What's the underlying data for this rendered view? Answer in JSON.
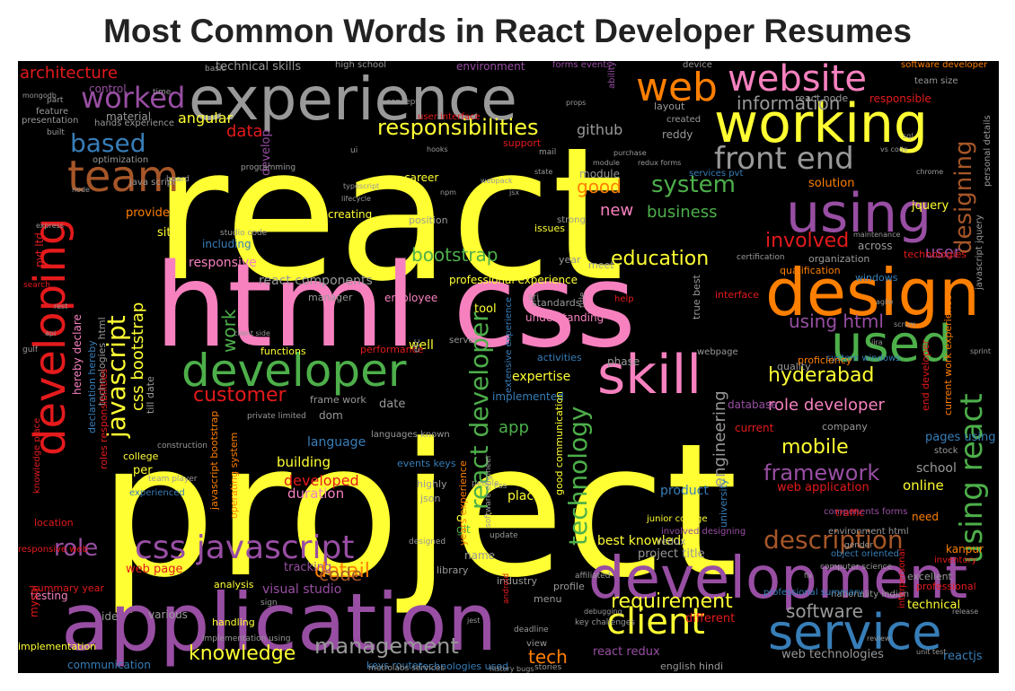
{
  "title": "Most Common Words in React Developer Resumes",
  "palette": {
    "yellow": "#ffff33",
    "pink": "#f781bf",
    "gray": "#999999",
    "purple": "#984ea3",
    "green": "#4daf4a",
    "orange": "#ff7f00",
    "brown": "#a65628",
    "blue": "#377eb8",
    "red": "#e41a1c"
  },
  "words": [
    {
      "text": "project",
      "color": "yellow"
    },
    {
      "text": "react",
      "color": "yellow"
    },
    {
      "text": "html css",
      "color": "pink"
    },
    {
      "text": "application",
      "color": "purple"
    },
    {
      "text": "experience",
      "color": "gray"
    },
    {
      "text": "design",
      "color": "orange"
    },
    {
      "text": "development",
      "color": "purple"
    },
    {
      "text": "working",
      "color": "yellow"
    },
    {
      "text": "developer",
      "color": "green"
    },
    {
      "text": "using",
      "color": "purple"
    },
    {
      "text": "skill",
      "color": "pink"
    },
    {
      "text": "used",
      "color": "green"
    },
    {
      "text": "service",
      "color": "blue"
    },
    {
      "text": "developing",
      "color": "red"
    },
    {
      "text": "web",
      "color": "orange"
    },
    {
      "text": "website",
      "color": "pink"
    },
    {
      "text": "team",
      "color": "brown"
    },
    {
      "text": "css javascript",
      "color": "purple"
    },
    {
      "text": "client",
      "color": "yellow"
    },
    {
      "text": "front end",
      "color": "gray"
    },
    {
      "text": "worked",
      "color": "purple"
    },
    {
      "text": "using react",
      "color": "green"
    },
    {
      "text": "javascript",
      "color": "yellow"
    },
    {
      "text": "react developer",
      "color": "green"
    },
    {
      "text": "technology",
      "color": "green"
    },
    {
      "text": "description",
      "color": "brown"
    },
    {
      "text": "designing",
      "color": "brown"
    },
    {
      "text": "based",
      "color": "blue"
    },
    {
      "text": "responsibilities",
      "color": "yellow"
    },
    {
      "text": "system",
      "color": "green"
    },
    {
      "text": "management",
      "color": "gray"
    },
    {
      "text": "knowledge",
      "color": "yellow"
    },
    {
      "text": "framework",
      "color": "purple"
    },
    {
      "text": "requirement",
      "color": "yellow"
    },
    {
      "text": "customer",
      "color": "red"
    },
    {
      "text": "role",
      "color": "purple"
    },
    {
      "text": "hyderabad",
      "color": "yellow"
    },
    {
      "text": "mobile",
      "color": "yellow"
    },
    {
      "text": "involved",
      "color": "red"
    },
    {
      "text": "bootstrap",
      "color": "green"
    },
    {
      "text": "education",
      "color": "yellow"
    },
    {
      "text": "software",
      "color": "gray"
    },
    {
      "text": "architecture",
      "color": "red"
    },
    {
      "text": "good",
      "color": "orange"
    },
    {
      "text": "business",
      "color": "green"
    },
    {
      "text": "using html",
      "color": "purple"
    },
    {
      "text": "information",
      "color": "gray"
    },
    {
      "text": "detail",
      "color": "orange"
    },
    {
      "text": "work",
      "color": "green"
    },
    {
      "text": "css bootstrap",
      "color": "yellow"
    },
    {
      "text": "engineering",
      "color": "gray"
    },
    {
      "text": "tech",
      "color": "orange"
    },
    {
      "text": "code",
      "color": "brown"
    },
    {
      "text": "app",
      "color": "green"
    },
    {
      "text": "github",
      "color": "gray"
    },
    {
      "text": "new",
      "color": "pink"
    },
    {
      "text": "role developer",
      "color": "pink"
    },
    {
      "text": "user",
      "color": "purple"
    },
    {
      "text": "data",
      "color": "red"
    },
    {
      "text": "angular",
      "color": "yellow"
    },
    {
      "text": "technical skills",
      "color": "gray"
    },
    {
      "text": "environment",
      "color": "purple"
    },
    {
      "text": "react components",
      "color": "gray"
    },
    {
      "text": "responsive",
      "color": "pink"
    },
    {
      "text": "language",
      "color": "blue"
    },
    {
      "text": "developed",
      "color": "red"
    },
    {
      "text": "duration",
      "color": "pink"
    },
    {
      "text": "building",
      "color": "yellow"
    },
    {
      "text": "product",
      "color": "blue"
    },
    {
      "text": "school",
      "color": "gray"
    },
    {
      "text": "online",
      "color": "yellow"
    },
    {
      "text": "web application",
      "color": "red"
    },
    {
      "text": "pages using",
      "color": "blue"
    },
    {
      "text": "best knowledge",
      "color": "yellow"
    },
    {
      "text": "project title",
      "color": "gray"
    },
    {
      "text": "visual studio",
      "color": "purple"
    },
    {
      "text": "web page",
      "color": "red"
    },
    {
      "text": "tracking",
      "color": "purple"
    },
    {
      "text": "web technologies",
      "color": "gray"
    },
    {
      "text": "react redux",
      "color": "purple"
    },
    {
      "text": "reactjs",
      "color": "blue"
    },
    {
      "text": "communication",
      "color": "blue"
    },
    {
      "text": "implementation",
      "color": "yellow"
    },
    {
      "text": "testing",
      "color": "pink"
    },
    {
      "text": "various",
      "color": "gray"
    },
    {
      "text": "keys router",
      "color": "blue"
    },
    {
      "text": "technologies used",
      "color": "blue"
    },
    {
      "text": "different",
      "color": "red"
    },
    {
      "text": "implemented",
      "color": "blue"
    },
    {
      "text": "expertise",
      "color": "yellow"
    },
    {
      "text": "database",
      "color": "purple"
    },
    {
      "text": "current",
      "color": "red"
    },
    {
      "text": "place",
      "color": "yellow"
    },
    {
      "text": "objective",
      "color": "yellow"
    },
    {
      "text": "module",
      "color": "gray"
    },
    {
      "text": "creating",
      "color": "yellow"
    },
    {
      "text": "solution",
      "color": "orange"
    },
    {
      "text": "jquery",
      "color": "yellow"
    },
    {
      "text": "provide",
      "color": "orange"
    },
    {
      "text": "site",
      "color": "yellow"
    },
    {
      "text": "including",
      "color": "blue"
    },
    {
      "text": "develop",
      "color": "purple"
    },
    {
      "text": "pvt ltd",
      "color": "red"
    },
    {
      "text": "control",
      "color": "purple"
    },
    {
      "text": "material",
      "color": "gray"
    },
    {
      "text": "optimization",
      "color": "gray"
    },
    {
      "text": "hands experience",
      "color": "gray"
    },
    {
      "text": "career",
      "color": "yellow"
    },
    {
      "text": "responsible",
      "color": "red"
    },
    {
      "text": "team size",
      "color": "gray"
    },
    {
      "text": "software developer",
      "color": "orange"
    },
    {
      "text": "created",
      "color": "gray"
    },
    {
      "text": "layout",
      "color": "gray"
    },
    {
      "text": "reddy",
      "color": "gray"
    },
    {
      "text": "react node",
      "color": "gray"
    },
    {
      "text": "services pvt",
      "color": "blue"
    },
    {
      "text": "organization",
      "color": "gray"
    },
    {
      "text": "employee",
      "color": "pink"
    },
    {
      "text": "manager",
      "color": "gray"
    },
    {
      "text": "true best",
      "color": "gray"
    },
    {
      "text": "system windows",
      "color": "blue"
    },
    {
      "text": "quality",
      "color": "gray"
    },
    {
      "text": "per",
      "color": "yellow"
    },
    {
      "text": "college",
      "color": "yellow"
    },
    {
      "text": "experienced",
      "color": "blue"
    },
    {
      "text": "location",
      "color": "red"
    },
    {
      "text": "summary year",
      "color": "red"
    },
    {
      "text": "hereby declare",
      "color": "pink"
    },
    {
      "text": "events keys",
      "color": "blue"
    },
    {
      "text": "frame work",
      "color": "gray"
    },
    {
      "text": "dom",
      "color": "gray"
    },
    {
      "text": "date",
      "color": "gray"
    },
    {
      "text": "well",
      "color": "yellow"
    },
    {
      "text": "performance",
      "color": "red"
    },
    {
      "text": "functions",
      "color": "yellow"
    },
    {
      "text": "tool",
      "color": "yellow"
    },
    {
      "text": "git",
      "color": "green"
    },
    {
      "text": "json",
      "color": "gray"
    },
    {
      "text": "name",
      "color": "gray"
    },
    {
      "text": "industry",
      "color": "gray"
    },
    {
      "text": "library",
      "color": "gray"
    },
    {
      "text": "profile",
      "color": "gray"
    },
    {
      "text": "menu",
      "color": "gray"
    },
    {
      "text": "analysis",
      "color": "yellow"
    },
    {
      "text": "ide",
      "color": "gray"
    },
    {
      "text": "mysql",
      "color": "red"
    },
    {
      "text": "handling",
      "color": "yellow"
    },
    {
      "text": "issues",
      "color": "yellow"
    },
    {
      "text": "year",
      "color": "gray"
    },
    {
      "text": "meet",
      "color": "gray"
    },
    {
      "text": "understanding",
      "color": "pink"
    },
    {
      "text": "phase",
      "color": "gray"
    },
    {
      "text": "activities",
      "color": "blue"
    },
    {
      "text": "professional experience",
      "color": "yellow"
    },
    {
      "text": "position",
      "color": "gray"
    },
    {
      "text": "standards",
      "color": "gray"
    },
    {
      "text": "company",
      "color": "gray"
    },
    {
      "text": "technical",
      "color": "yellow"
    },
    {
      "text": "professional",
      "color": "red"
    },
    {
      "text": "excellent",
      "color": "gray"
    },
    {
      "text": "inventory",
      "color": "red"
    },
    {
      "text": "proficiency",
      "color": "orange"
    },
    {
      "text": "qualification",
      "color": "orange"
    },
    {
      "text": "interface",
      "color": "red"
    },
    {
      "text": "technologies",
      "color": "red"
    },
    {
      "text": "windows",
      "color": "blue"
    },
    {
      "text": "across",
      "color": "gray"
    },
    {
      "text": "current work experience",
      "color": "orange"
    },
    {
      "text": "javascript jquery",
      "color": "gray"
    },
    {
      "text": "personal details",
      "color": "gray"
    },
    {
      "text": "components forms",
      "color": "purple"
    },
    {
      "text": "involved designing",
      "color": "purple"
    },
    {
      "text": "nationality indian",
      "color": "gray"
    },
    {
      "text": "interpersonal",
      "color": "red"
    },
    {
      "text": "object oriented",
      "color": "blue"
    },
    {
      "text": "professional summary",
      "color": "blue"
    },
    {
      "text": "kanpur",
      "color": "orange"
    },
    {
      "text": "traffic",
      "color": "red"
    },
    {
      "text": "environment html",
      "color": "gray"
    },
    {
      "text": "need",
      "color": "orange"
    },
    {
      "text": "end developer",
      "color": "red"
    },
    {
      "text": "english hindi",
      "color": "gray"
    },
    {
      "text": "university",
      "color": "blue"
    },
    {
      "text": "good communication",
      "color": "yellow"
    },
    {
      "text": "years experience",
      "color": "orange"
    },
    {
      "text": "highly",
      "color": "gray"
    },
    {
      "text": "redux",
      "color": "gray"
    },
    {
      "text": "technologies html",
      "color": "gray"
    },
    {
      "text": "roles responsibilities",
      "color": "red"
    },
    {
      "text": "declaration hereby",
      "color": "blue"
    },
    {
      "text": "till date",
      "color": "gray"
    },
    {
      "text": "javascript bootstrap",
      "color": "orange"
    },
    {
      "text": "operating system",
      "color": "orange"
    },
    {
      "text": "knowledge place",
      "color": "red"
    },
    {
      "text": "responsive web",
      "color": "red"
    },
    {
      "text": "extensive experience",
      "color": "blue"
    },
    {
      "text": "languages known",
      "color": "gray"
    },
    {
      "text": "user interface",
      "color": "red"
    },
    {
      "text": "java script",
      "color": "gray"
    },
    {
      "text": "metrolabs services",
      "color": "gray"
    },
    {
      "text": "presentation",
      "color": "gray"
    },
    {
      "text": "feature",
      "color": "gray"
    },
    {
      "text": "part",
      "color": "gray"
    },
    {
      "text": "built",
      "color": "gray"
    },
    {
      "text": "high school",
      "color": "gray"
    },
    {
      "text": "forms events",
      "color": "purple"
    },
    {
      "text": "ability",
      "color": "purple"
    },
    {
      "text": "device",
      "color": "gray"
    },
    {
      "text": "support",
      "color": "red"
    },
    {
      "text": "concept",
      "color": "gray"
    },
    {
      "text": "board",
      "color": "gray"
    },
    {
      "text": "programming",
      "color": "gray"
    },
    {
      "text": "deadline",
      "color": "gray"
    },
    {
      "text": "view",
      "color": "gray"
    },
    {
      "text": "software engineer",
      "color": "gray"
    },
    {
      "text": "sri",
      "color": "gray"
    },
    {
      "text": "server",
      "color": "gray"
    },
    {
      "text": "junior college",
      "color": "yellow"
    },
    {
      "text": "webpage",
      "color": "gray"
    },
    {
      "text": "etc",
      "color": "gray"
    },
    {
      "text": "help",
      "color": "red"
    },
    {
      "text": "time",
      "color": "gray"
    },
    {
      "text": "basic",
      "color": "gray"
    },
    {
      "text": "update",
      "color": "gray"
    },
    {
      "text": "designed",
      "color": "gray"
    },
    {
      "text": "people",
      "color": "gray"
    },
    {
      "text": "stories",
      "color": "gray"
    },
    {
      "text": "android",
      "color": "red"
    },
    {
      "text": "affiliated",
      "color": "gray"
    },
    {
      "text": "strong",
      "color": "gray"
    },
    {
      "text": "stock",
      "color": "gray"
    },
    {
      "text": "search",
      "color": "red"
    },
    {
      "text": "title",
      "color": "gray"
    },
    {
      "text": "gender",
      "color": "gray"
    },
    {
      "text": "computer science",
      "color": "gray"
    },
    {
      "text": "key challenges",
      "color": "gray"
    },
    {
      "text": "gulf",
      "color": "gray"
    },
    {
      "text": "sign",
      "color": "gray"
    },
    {
      "text": "certification",
      "color": "gray"
    },
    {
      "text": "ui",
      "color": "gray"
    },
    {
      "text": "mail",
      "color": "gray"
    },
    {
      "text": "css",
      "color": "gray"
    },
    {
      "text": "team player",
      "color": "gray"
    },
    {
      "text": "studio code",
      "color": "gray"
    },
    {
      "text": "private limited",
      "color": "gray"
    },
    {
      "text": "construction",
      "color": "gray"
    },
    {
      "text": "implementation using",
      "color": "gray"
    },
    {
      "text": "history bugs",
      "color": "gray"
    },
    {
      "text": "typescript",
      "color": "gray"
    },
    {
      "text": "hooks",
      "color": "gray"
    },
    {
      "text": "redux forms",
      "color": "gray"
    },
    {
      "text": "maintenance",
      "color": "gray"
    },
    {
      "text": "module",
      "color": "gray"
    },
    {
      "text": "purchase",
      "color": "gray"
    },
    {
      "text": "lifecycle",
      "color": "gray"
    },
    {
      "text": "props",
      "color": "gray"
    },
    {
      "text": "state",
      "color": "gray"
    },
    {
      "text": "jsx",
      "color": "gray"
    },
    {
      "text": "npm",
      "color": "gray"
    },
    {
      "text": "webpack",
      "color": "gray"
    },
    {
      "text": "agile",
      "color": "gray"
    },
    {
      "text": "scrum",
      "color": "gray"
    },
    {
      "text": "jira",
      "color": "gray"
    },
    {
      "text": "sprint",
      "color": "gray"
    },
    {
      "text": "client side",
      "color": "gray"
    },
    {
      "text": "api",
      "color": "gray"
    },
    {
      "text": "rest",
      "color": "gray"
    },
    {
      "text": "node",
      "color": "gray"
    },
    {
      "text": "express",
      "color": "gray"
    },
    {
      "text": "mongodb",
      "color": "gray"
    },
    {
      "text": "sql",
      "color": "gray"
    },
    {
      "text": "vs code",
      "color": "gray"
    },
    {
      "text": "chrome",
      "color": "gray"
    },
    {
      "text": "debugging",
      "color": "gray"
    },
    {
      "text": "review",
      "color": "gray"
    },
    {
      "text": "unit test",
      "color": "gray"
    },
    {
      "text": "jest",
      "color": "gray"
    },
    {
      "text": "fix",
      "color": "gray"
    },
    {
      "text": "release",
      "color": "gray"
    }
  ]
}
